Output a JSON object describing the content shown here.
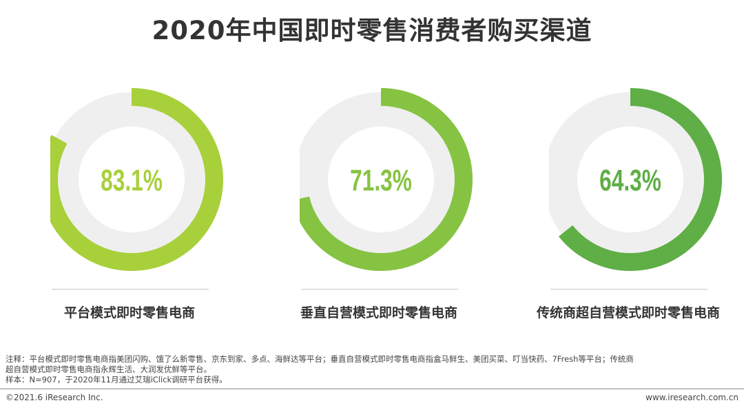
{
  "title": "2020年中国即时零售消费者购买渠道",
  "chart_data": [
    {
      "type": "pie",
      "label": "平台模式即时零售电商",
      "value": 83.1,
      "value_text": "83.1%",
      "color": "#a8d03a"
    },
    {
      "type": "pie",
      "label": "垂直自营模式即时零售电商",
      "value": 71.3,
      "value_text": "71.3%",
      "color": "#86c342"
    },
    {
      "type": "pie",
      "label": "传统商超自营模式即时零售电商",
      "value": 64.3,
      "value_text": "64.3%",
      "color": "#5fae46"
    }
  ],
  "notes": {
    "line1": "注释：平台模式即时零售电商指美团闪购、饿了么新零售、京东到家、多点、海鲜达等平台；垂直自营模式即时零售电商指盒马鲜生、美团买菜、叮当快药、7Fresh等平台；传统商",
    "line2": "超自营模式即时零售电商指永辉生活、大润发优鲜等平台。",
    "line3": "样本：N=907，于2020年11月通过艾瑞iClick调研平台获得。"
  },
  "footer": {
    "copyright": "©2021.6 iResearch Inc.",
    "website": "www.iresearch.com.cn"
  },
  "style": {
    "track_color": "#efefef"
  }
}
